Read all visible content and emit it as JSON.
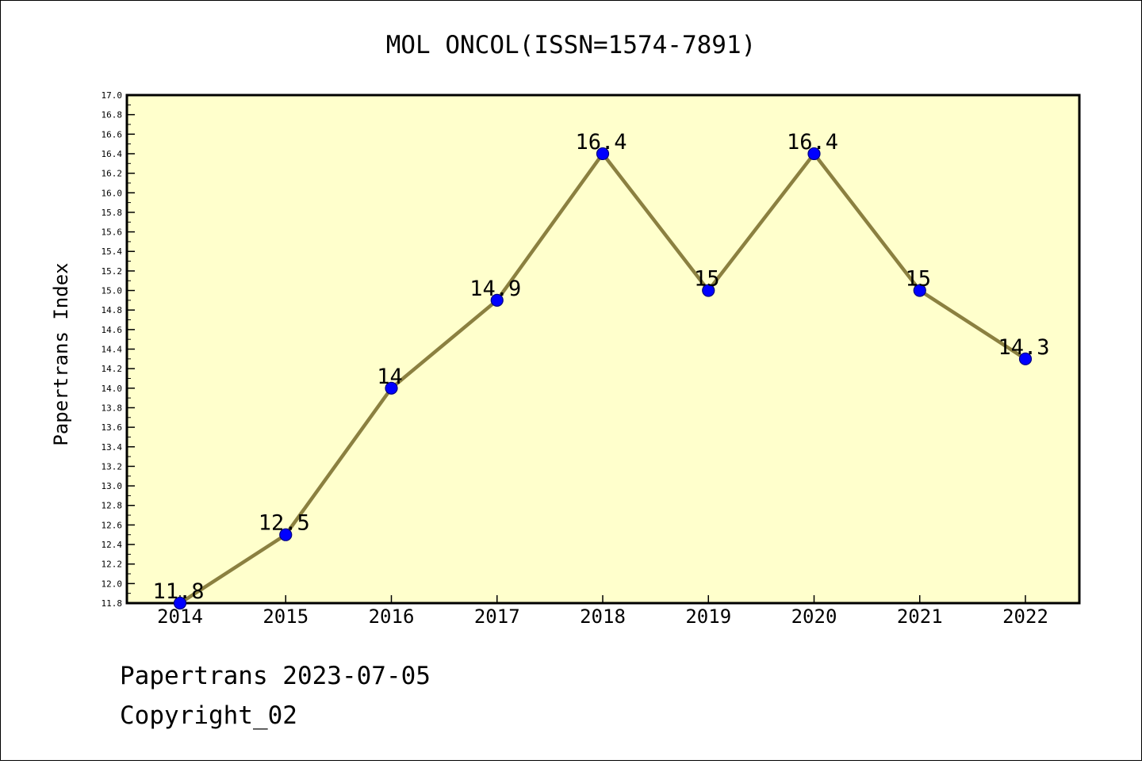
{
  "chart_data": {
    "type": "line",
    "title": "MOL ONCOL(ISSN=1574-7891)",
    "xlabel": "",
    "ylabel": "Papertrans Index",
    "categories": [
      "2014",
      "2015",
      "2016",
      "2017",
      "2018",
      "2019",
      "2020",
      "2021",
      "2022"
    ],
    "series": [
      {
        "values": [
          11.8,
          12.5,
          14.0,
          14.9,
          16.4,
          15.0,
          16.4,
          15.0,
          14.3
        ],
        "labels": [
          "11.8",
          "12.5",
          "14",
          "14.9",
          "16.4",
          "15",
          "16.4",
          "15",
          "14.3"
        ]
      }
    ],
    "ylim": [
      11.8,
      17.0
    ],
    "ytick_labels": [
      "11.8",
      "12.0",
      "12.2",
      "12.4",
      "12.6",
      "12.8",
      "13.0",
      "13.2",
      "13.4",
      "13.6",
      "13.8",
      "14.0",
      "14.2",
      "14.4",
      "14.6",
      "14.8",
      "15.0",
      "15.2",
      "15.4",
      "15.6",
      "15.8",
      "16.0",
      "16.2",
      "16.4",
      "16.6",
      "16.8",
      "17.0"
    ],
    "grid": false,
    "legend": "none",
    "colors": {
      "plot_background": "#ffffcc",
      "line": "#8b8040",
      "marker": "#0000ff",
      "marker_edge": "#000080"
    }
  },
  "footer": {
    "line1": "Papertrans 2023-07-05",
    "line2": "Copyright_02"
  }
}
